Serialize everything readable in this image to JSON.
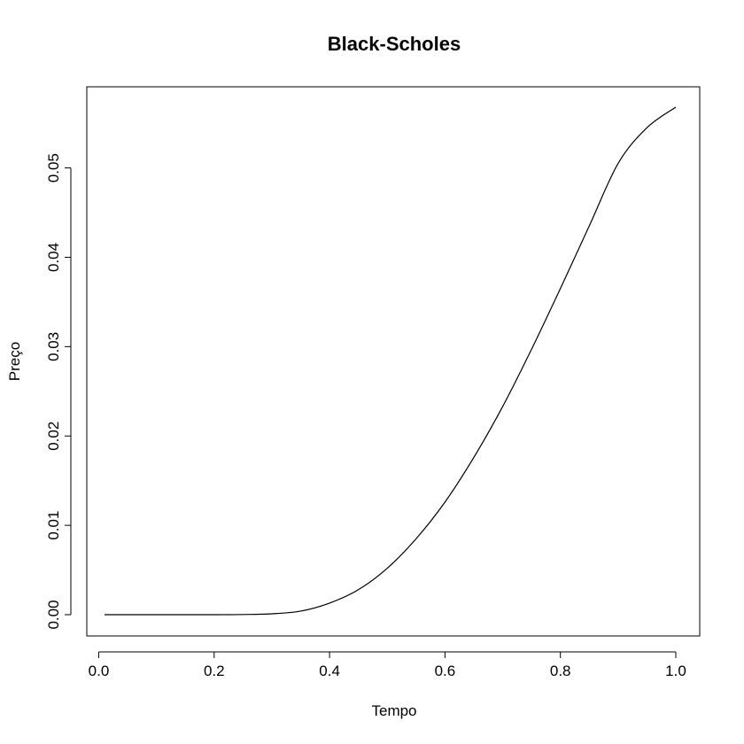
{
  "chart_data": {
    "type": "line",
    "title": "Black-Scholes",
    "xlabel": "Tempo",
    "ylabel": "Preço",
    "xlim": [
      0.01,
      1.0
    ],
    "ylim": [
      0.0,
      0.0568
    ],
    "x_ticks": [
      0.0,
      0.2,
      0.4,
      0.6,
      0.8,
      1.0
    ],
    "x_tick_labels": [
      "0.0",
      "0.2",
      "0.4",
      "0.6",
      "0.8",
      "1.0"
    ],
    "y_ticks": [
      0.0,
      0.01,
      0.02,
      0.03,
      0.04,
      0.05
    ],
    "y_tick_labels": [
      "0.00",
      "0.01",
      "0.02",
      "0.03",
      "0.04",
      "0.05"
    ],
    "grid": false,
    "line_color": "#000000",
    "series": [
      {
        "x": [
          0.01,
          0.05,
          0.1,
          0.15,
          0.2,
          0.25,
          0.3,
          0.35,
          0.4,
          0.45,
          0.5,
          0.55,
          0.6,
          0.65,
          0.7,
          0.75,
          0.8,
          0.85,
          0.9,
          0.95,
          1.0
        ],
        "y": [
          0.0,
          0.0,
          0.0,
          0.0,
          0.0,
          2e-05,
          0.0001,
          0.0004,
          0.0013,
          0.0028,
          0.0052,
          0.0085,
          0.0126,
          0.0176,
          0.0233,
          0.0297,
          0.0365,
          0.0435,
          0.0505,
          0.0545,
          0.0568
        ]
      }
    ]
  }
}
